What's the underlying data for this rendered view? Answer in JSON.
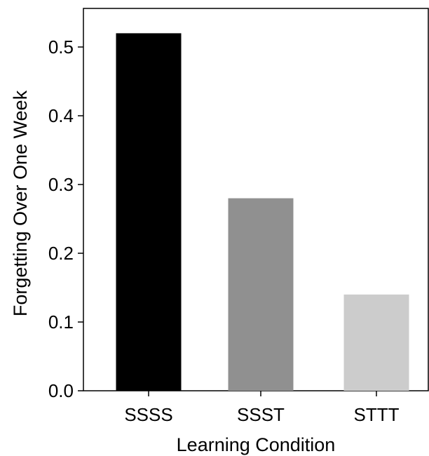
{
  "chart_data": {
    "type": "bar",
    "title": "",
    "xlabel": "Learning Condition",
    "ylabel": "Forgetting Over One Week",
    "categories": [
      "SSSS",
      "SSST",
      "STTT"
    ],
    "values": [
      0.52,
      0.28,
      0.14
    ],
    "bar_colors": [
      "#000000",
      "#909090",
      "#cccccc"
    ],
    "ylim": [
      0,
      0.55
    ],
    "yticks": [
      0.0,
      0.1,
      0.2,
      0.3,
      0.4,
      0.5
    ],
    "ytick_labels": [
      "0.0",
      "0.1",
      "0.2",
      "0.3",
      "0.4",
      "0.5"
    ],
    "grid": false,
    "legend": "none"
  }
}
